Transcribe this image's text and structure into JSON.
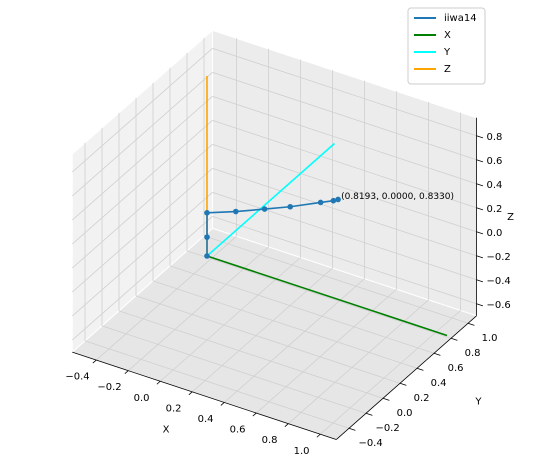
{
  "chart_data": {
    "type": "line3d",
    "xlabel": "X",
    "ylabel": "Y",
    "zlabel": "Z",
    "xlim": [
      -0.55,
      1.1
    ],
    "ylim": [
      -0.55,
      1.1
    ],
    "zlim": [
      -0.7,
      0.95
    ],
    "xticks": [
      {
        "value": -0.4,
        "label": "−0.4"
      },
      {
        "value": -0.2,
        "label": "−0.2"
      },
      {
        "value": 0.0,
        "label": "0.0"
      },
      0.2,
      0.4,
      0.6,
      0.8,
      {
        "value": 1.0,
        "label": "1.0"
      }
    ],
    "yticks": [
      {
        "value": -0.4,
        "label": "−0.4"
      },
      {
        "value": -0.2,
        "label": "−0.2"
      },
      {
        "value": 0.0,
        "label": "0.0"
      },
      0.2,
      0.4,
      0.6,
      0.8,
      {
        "value": 1.0,
        "label": "1.0"
      }
    ],
    "zticks": [
      {
        "value": -0.6,
        "label": "−0.6"
      },
      {
        "value": -0.4,
        "label": "−0.4"
      },
      {
        "value": -0.2,
        "label": "−0.2"
      },
      {
        "value": 0.0,
        "label": "0.0"
      },
      0.2,
      0.4,
      0.6,
      0.8
    ],
    "grid": true,
    "legend": "upper right",
    "series": [
      {
        "name": "iiwa14",
        "color": "#1f77b4",
        "markers": true,
        "x": [
          0,
          0,
          0,
          0.18,
          0.36,
          0.52,
          0.71,
          0.79,
          0.8193
        ],
        "y": [
          0,
          0,
          0,
          0,
          0,
          0,
          0,
          0,
          0
        ],
        "z": [
          0,
          0.1575,
          0.36,
          0.45,
          0.55,
          0.64,
          0.76,
          0.81,
          0.833
        ]
      },
      {
        "name": "X",
        "color": "#008000",
        "markers": false,
        "x": [
          0,
          1.5
        ],
        "y": [
          0,
          0
        ],
        "z": [
          0,
          0
        ]
      },
      {
        "name": "Y",
        "color": "#00ffff",
        "markers": false,
        "x": [
          0,
          0
        ],
        "y": [
          0,
          1.5
        ],
        "z": [
          0,
          0
        ]
      },
      {
        "name": "Z",
        "color": "#ffa500",
        "markers": false,
        "x": [
          0,
          0
        ],
        "y": [
          0,
          0
        ],
        "z": [
          0,
          1.5
        ]
      }
    ],
    "annotations": [
      {
        "text": "(0.8193, 0.0000, 0.8330)",
        "x": 0.8193,
        "y": 0,
        "z": 0.833
      }
    ]
  }
}
